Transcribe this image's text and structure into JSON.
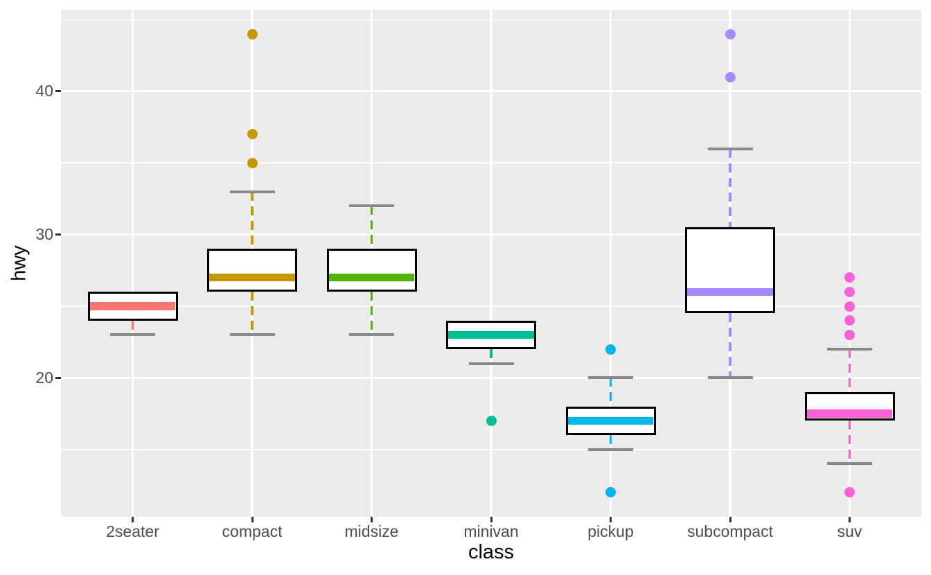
{
  "chart_data": {
    "type": "boxplot",
    "title": "",
    "xlabel": "class",
    "ylabel": "hwy",
    "categories": [
      "2seater",
      "compact",
      "midsize",
      "minivan",
      "pickup",
      "subcompact",
      "suv"
    ],
    "series": [
      {
        "category": "2seater",
        "whisker_low": 23,
        "q1": 24,
        "median": 25,
        "q3": 26,
        "whisker_high": 26,
        "outliers": [],
        "color": "#F8766D"
      },
      {
        "category": "compact",
        "whisker_low": 23,
        "q1": 26,
        "median": 27,
        "q3": 29,
        "whisker_high": 33,
        "outliers": [
          35,
          37,
          44
        ],
        "color": "#C49A00"
      },
      {
        "category": "midsize",
        "whisker_low": 23,
        "q1": 26,
        "median": 27,
        "q3": 29,
        "whisker_high": 32,
        "outliers": [],
        "color": "#53B400"
      },
      {
        "category": "minivan",
        "whisker_low": 21,
        "q1": 22,
        "median": 23,
        "q3": 24,
        "whisker_high": 24,
        "outliers": [
          17
        ],
        "color": "#00C094"
      },
      {
        "category": "pickup",
        "whisker_low": 15,
        "q1": 16,
        "median": 17,
        "q3": 18,
        "whisker_high": 20,
        "outliers": [
          22,
          12
        ],
        "color": "#00B6EB"
      },
      {
        "category": "subcompact",
        "whisker_low": 20,
        "q1": 24.5,
        "median": 26,
        "q3": 30.5,
        "whisker_high": 36,
        "outliers": [
          44,
          41
        ],
        "color": "#A58AFF"
      },
      {
        "category": "suv",
        "whisker_low": 14,
        "q1": 17,
        "median": 17.5,
        "q3": 19,
        "whisker_high": 22,
        "outliers": [
          27,
          26,
          25,
          24,
          23,
          12
        ],
        "color": "#FB61D7"
      }
    ],
    "y_ticks": [
      20,
      30,
      40
    ],
    "y_minor_gridlines": [
      15,
      25,
      35,
      45
    ],
    "ylim": [
      10.3,
      45.7
    ],
    "grid": true,
    "legend": "none",
    "style": {
      "panel_background": "#EBEBEB",
      "gridline_color": "#FFFFFF",
      "box_fill": "#FFFFFF",
      "box_border_color": "#000000",
      "whisker_cap_color": "#888888",
      "tick_mark_color": "#333333",
      "tick_label_color": "#4D4D4D",
      "axis_title_color": "#000000"
    }
  }
}
